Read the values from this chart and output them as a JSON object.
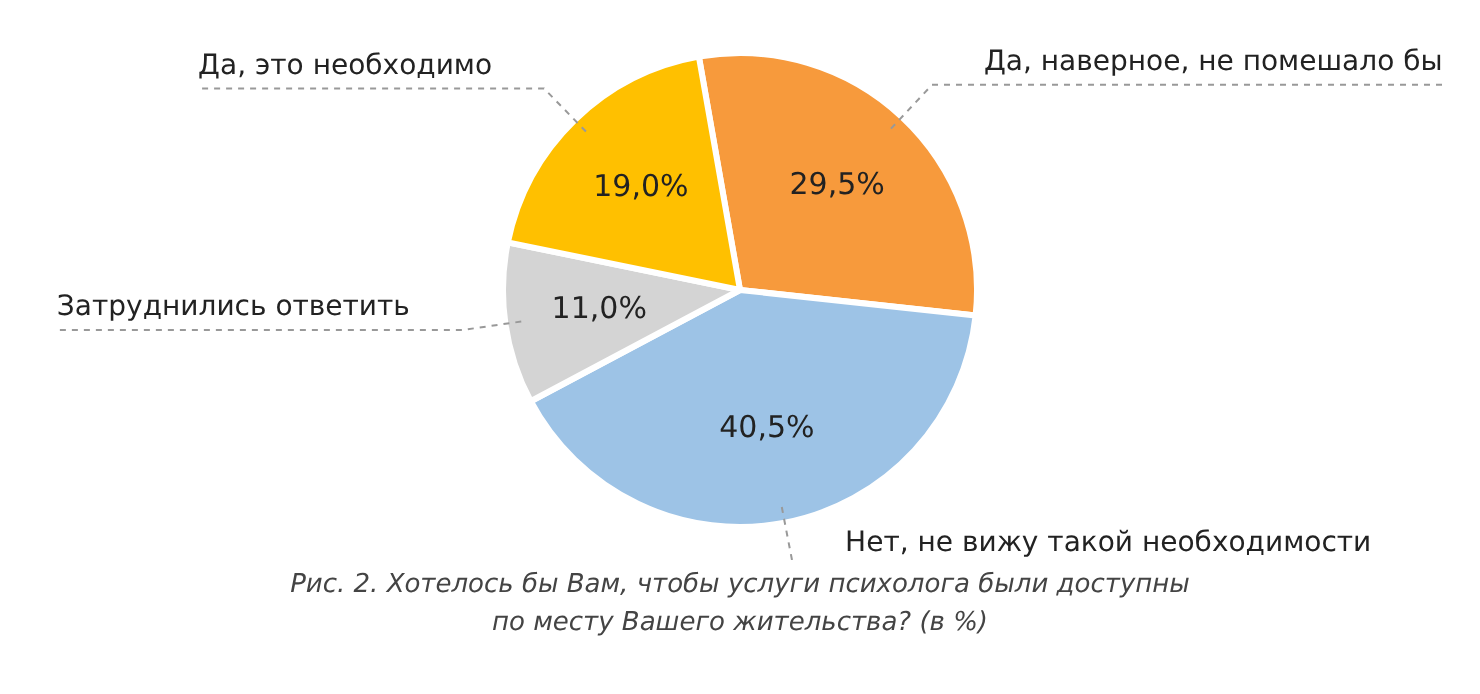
{
  "chart_data": {
    "type": "pie",
    "categories": [
      "Да, наверное, не помешало бы",
      "Нет, не вижу такой необходимости",
      "Затруднились ответить",
      "Да, это необходимо"
    ],
    "values": [
      29.5,
      40.5,
      11.0,
      19.0
    ],
    "value_labels": [
      "29,5%",
      "40,5%",
      "11,0%",
      "19,0%"
    ],
    "colors": [
      "#f79a3c",
      "#9dc3e6",
      "#d4d4d4",
      "#ffc000"
    ],
    "legend": false,
    "annotations": [
      "Рис. 2. Хотелось бы Вам, чтобы услуги психолога были доступны по месту Вашего жительства? (в %)"
    ]
  }
}
